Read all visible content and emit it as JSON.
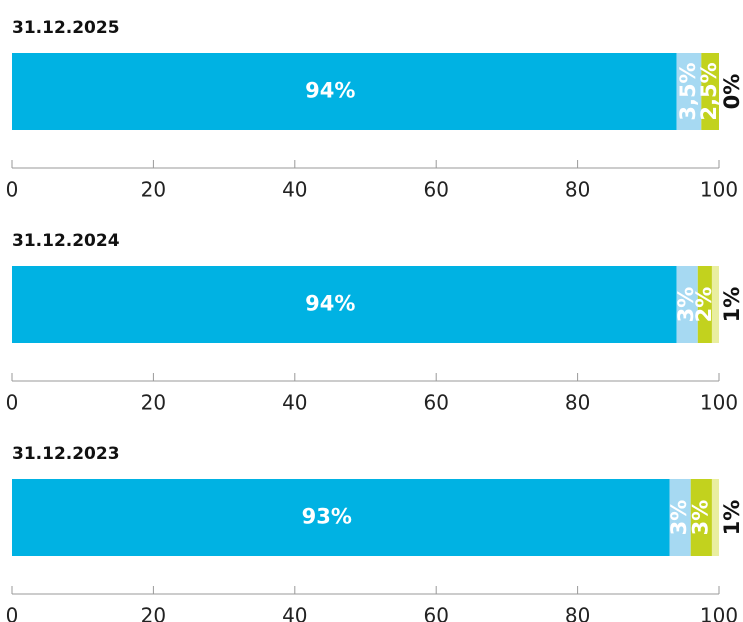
{
  "chart_data": [
    {
      "type": "bar",
      "title": "31.12.2025",
      "xlim": [
        0,
        100
      ],
      "xticks": [
        0,
        20,
        40,
        60,
        80,
        100
      ],
      "series": [
        {
          "color": "#00b2e3",
          "values": [
            94
          ],
          "value_labels": [
            "94%"
          ]
        },
        {
          "color": "#a6d9f2",
          "values": [
            3.5
          ],
          "value_labels": [
            "3,5%"
          ]
        },
        {
          "color": "#c2d21e",
          "values": [
            2.5
          ],
          "value_labels": [
            "2,5%"
          ]
        },
        {
          "color": "#e9eea0",
          "values": [
            0
          ],
          "value_labels": [
            "0%"
          ]
        }
      ]
    },
    {
      "type": "bar",
      "title": "31.12.2024",
      "xlim": [
        0,
        100
      ],
      "xticks": [
        0,
        20,
        40,
        60,
        80,
        100
      ],
      "series": [
        {
          "color": "#00b2e3",
          "values": [
            94
          ],
          "value_labels": [
            "94%"
          ]
        },
        {
          "color": "#a6d9f2",
          "values": [
            3
          ],
          "value_labels": [
            "3%"
          ]
        },
        {
          "color": "#c2d21e",
          "values": [
            2
          ],
          "value_labels": [
            "2%"
          ]
        },
        {
          "color": "#e9eea0",
          "values": [
            1
          ],
          "value_labels": [
            "1%"
          ]
        }
      ]
    },
    {
      "type": "bar",
      "title": "31.12.2023",
      "xlim": [
        0,
        100
      ],
      "xticks": [
        0,
        20,
        40,
        60,
        80,
        100
      ],
      "series": [
        {
          "color": "#00b2e3",
          "values": [
            93
          ],
          "value_labels": [
            "93%"
          ]
        },
        {
          "color": "#a6d9f2",
          "values": [
            3
          ],
          "value_labels": [
            "3%"
          ]
        },
        {
          "color": "#c2d21e",
          "values": [
            3
          ],
          "value_labels": [
            "3%"
          ]
        },
        {
          "color": "#e9eea0",
          "values": [
            1
          ],
          "value_labels": [
            "1%"
          ]
        }
      ]
    }
  ]
}
